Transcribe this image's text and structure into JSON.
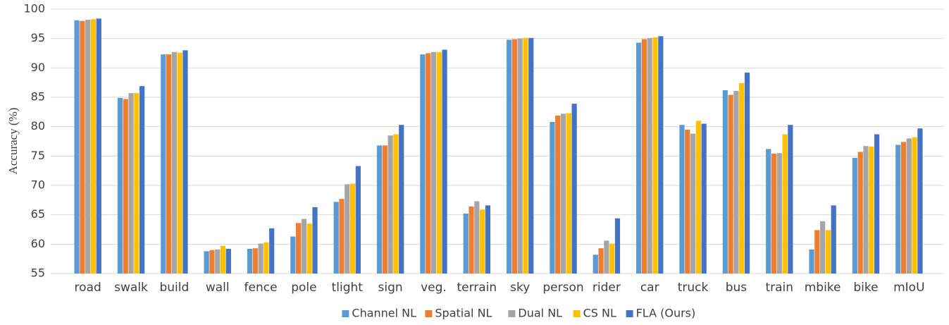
{
  "chart_data": {
    "type": "bar",
    "y_label": "Accuracy  (%)",
    "categories": [
      "road",
      "swalk",
      "build",
      "wall",
      "fence",
      "pole",
      "tlight",
      "sign",
      "veg.",
      "terrain",
      "sky",
      "person",
      "rider",
      "car",
      "truck",
      "bus",
      "train",
      "mbike",
      "bike",
      "mIoU"
    ],
    "series": [
      {
        "name": "Channel NL",
        "color": "#5b9bd5",
        "values": [
          98.1,
          84.9,
          92.3,
          58.8,
          59.2,
          61.3,
          67.2,
          76.8,
          92.3,
          65.2,
          94.8,
          80.8,
          58.2,
          94.3,
          80.3,
          86.2,
          76.2,
          59.1,
          74.7,
          76.9
        ]
      },
      {
        "name": "Spatial NL",
        "color": "#ed7d31",
        "values": [
          98.0,
          84.7,
          92.3,
          59.0,
          59.3,
          63.6,
          67.7,
          76.8,
          92.5,
          66.4,
          94.9,
          81.9,
          59.3,
          94.9,
          79.5,
          85.4,
          75.4,
          62.4,
          75.7,
          77.4
        ]
      },
      {
        "name": "Dual NL",
        "color": "#a5a5a5",
        "values": [
          98.2,
          85.7,
          92.7,
          59.1,
          60.1,
          64.3,
          70.2,
          78.5,
          92.7,
          67.3,
          95.0,
          82.2,
          60.6,
          95.1,
          78.8,
          86.1,
          75.5,
          63.9,
          76.7,
          78.0
        ]
      },
      {
        "name": "CS NL",
        "color": "#ffc000",
        "values": [
          98.3,
          85.7,
          92.6,
          59.7,
          60.3,
          63.5,
          70.3,
          78.7,
          92.7,
          65.9,
          95.1,
          82.3,
          60.1,
          95.2,
          81.0,
          87.4,
          78.7,
          62.4,
          76.6,
          78.2
        ]
      },
      {
        "name": "FLA (Ours)",
        "color": "#4472c4",
        "values": [
          98.4,
          86.9,
          93.0,
          59.2,
          62.7,
          66.3,
          73.3,
          80.3,
          93.1,
          66.6,
          95.1,
          83.9,
          64.4,
          95.4,
          80.5,
          89.2,
          80.3,
          66.6,
          78.7,
          79.7
        ]
      }
    ],
    "ylim": [
      55,
      100
    ],
    "yticks": [
      55,
      60,
      65,
      70,
      75,
      80,
      85,
      90,
      95,
      100
    ],
    "grid": true,
    "legend": "bottom"
  }
}
